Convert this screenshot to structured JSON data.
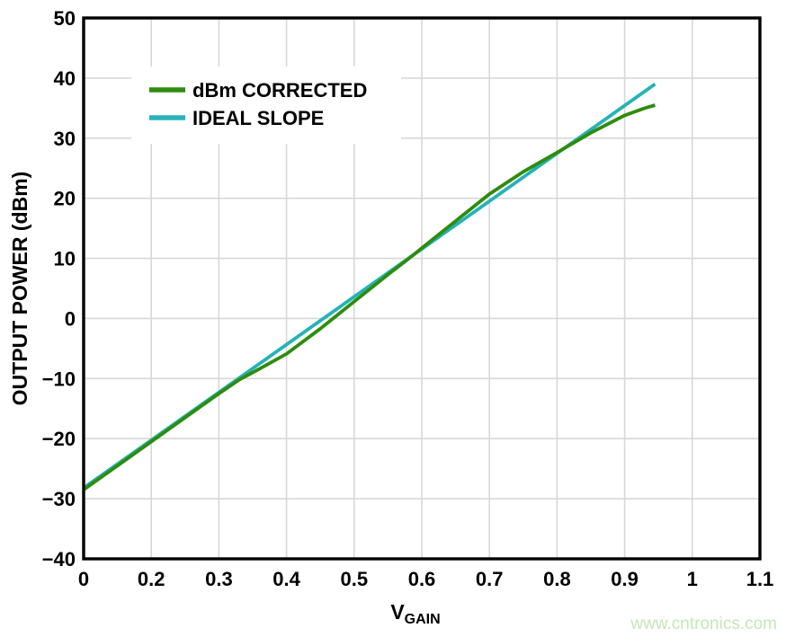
{
  "watermark": {
    "text": "www.cntronics.com",
    "color": "#c6e8b4"
  },
  "chart_data": {
    "type": "line",
    "title": "",
    "xlabel": {
      "main": "V",
      "sub": "GAIN"
    },
    "ylabel": "OUTPUT POWER (dBm)",
    "grid": true,
    "legend_position": "top-left",
    "x_axis": {
      "tick_labels": [
        "0",
        "0.2",
        "0.3",
        "0.4",
        "0.5",
        "0.6",
        "0.7",
        "0.8",
        "0.9",
        "1",
        "1.1"
      ]
    },
    "y_axis": {
      "tick_labels": [
        "50",
        "40",
        "30",
        "20",
        "10",
        "0",
        "−10",
        "−20",
        "−30",
        "−40"
      ],
      "ylim": [
        -40,
        50
      ]
    },
    "series": [
      {
        "name": "dBm CORRECTED",
        "color": "#2e8c0d",
        "points": [
          [
            0,
            -28.5
          ],
          [
            0.2,
            -20.5
          ],
          [
            0.3,
            -12.5
          ],
          [
            0.33,
            -10.2
          ],
          [
            0.36,
            -8.4
          ],
          [
            0.4,
            -5.9
          ],
          [
            0.45,
            -1.7
          ],
          [
            0.5,
            2.8
          ],
          [
            0.55,
            7.3
          ],
          [
            0.58,
            9.9
          ],
          [
            0.62,
            13.5
          ],
          [
            0.65,
            16.2
          ],
          [
            0.7,
            20.7
          ],
          [
            0.75,
            24.4
          ],
          [
            0.8,
            27.6
          ],
          [
            0.85,
            30.9
          ],
          [
            0.9,
            33.8
          ],
          [
            0.93,
            35.0
          ],
          [
            0.945,
            35.5
          ]
        ]
      },
      {
        "name": "IDEAL SLOPE",
        "color": "#25b2b8",
        "points": [
          [
            0,
            -28.2
          ],
          [
            0.945,
            39.0
          ]
        ]
      }
    ]
  }
}
